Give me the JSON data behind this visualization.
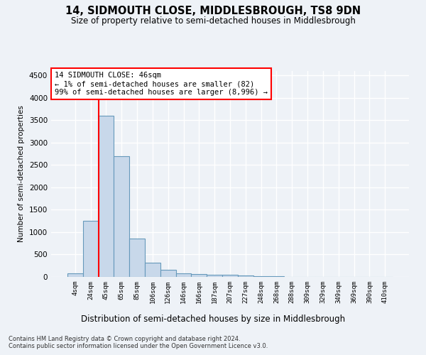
{
  "title": "14, SIDMOUTH CLOSE, MIDDLESBROUGH, TS8 9DN",
  "subtitle": "Size of property relative to semi-detached houses in Middlesbrough",
  "xlabel": "Distribution of semi-detached houses by size in Middlesbrough",
  "ylabel": "Number of semi-detached properties",
  "bar_color": "#c8d8ea",
  "bar_edge_color": "#6699bb",
  "bin_labels": [
    "4sqm",
    "24sqm",
    "45sqm",
    "65sqm",
    "85sqm",
    "106sqm",
    "126sqm",
    "146sqm",
    "166sqm",
    "187sqm",
    "207sqm",
    "227sqm",
    "248sqm",
    "268sqm",
    "288sqm",
    "309sqm",
    "329sqm",
    "349sqm",
    "369sqm",
    "390sqm",
    "410sqm"
  ],
  "bar_heights": [
    80,
    1250,
    3600,
    2700,
    850,
    320,
    160,
    80,
    60,
    55,
    40,
    30,
    20,
    10,
    5,
    3,
    2,
    1,
    1,
    0,
    0
  ],
  "red_line_x": 1.5,
  "ylim": [
    0,
    4600
  ],
  "yticks": [
    0,
    500,
    1000,
    1500,
    2000,
    2500,
    3000,
    3500,
    4000,
    4500
  ],
  "annotation_title": "14 SIDMOUTH CLOSE: 46sqm",
  "annotation_line1": "← 1% of semi-detached houses are smaller (82)",
  "annotation_line2": "99% of semi-detached houses are larger (8,996) →",
  "footer1": "Contains HM Land Registry data © Crown copyright and database right 2024.",
  "footer2": "Contains public sector information licensed under the Open Government Licence v3.0.",
  "bg_color": "#eef2f7",
  "grid_color": "#ffffff"
}
